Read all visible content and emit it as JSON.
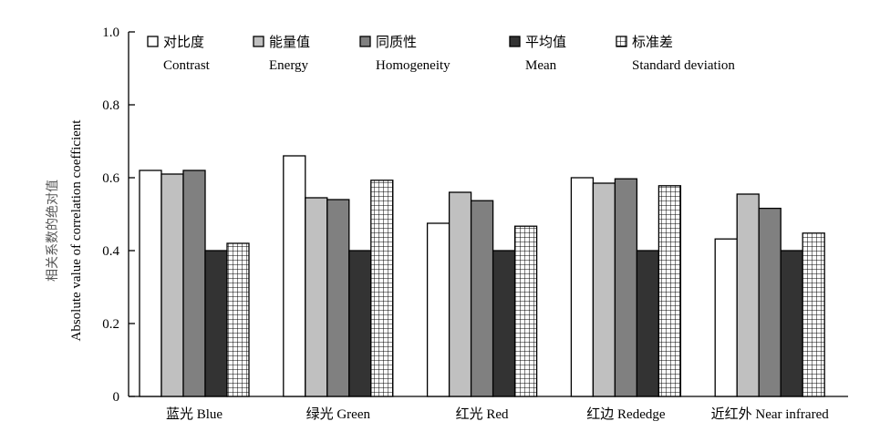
{
  "chart_data": {
    "type": "bar",
    "ylabel_cn": "相关系数的绝对值",
    "ylabel": "Absolute value of correlation coefficient",
    "ylim": [
      0,
      1.0
    ],
    "yticks": [
      0,
      0.2,
      0.4,
      0.6,
      0.8,
      1.0
    ],
    "ytick_labels": [
      "0",
      "0.2",
      "0.4",
      "0.6",
      "0.8",
      "1.0"
    ],
    "categories": [
      "蓝光 Blue",
      "绿光 Green",
      "红光 Red",
      "红边 Rededge",
      "近红外 Near infrared"
    ],
    "legend_position": "top",
    "series": [
      {
        "name_cn": "对比度",
        "name": "Contrast",
        "fill": "#ffffff",
        "pattern": "none",
        "values": [
          0.62,
          0.66,
          0.475,
          0.6,
          0.432
        ]
      },
      {
        "name_cn": "能量值",
        "name": "Energy",
        "fill": "#c0c0c0",
        "pattern": "none",
        "values": [
          0.61,
          0.545,
          0.56,
          0.585,
          0.555
        ]
      },
      {
        "name_cn": "同质性",
        "name": "Homogeneity",
        "fill": "#808080",
        "pattern": "none",
        "values": [
          0.62,
          0.54,
          0.537,
          0.597,
          0.516
        ]
      },
      {
        "name_cn": "平均值",
        "name": "Mean",
        "fill": "#333333",
        "pattern": "none",
        "values": [
          0.4,
          0.4,
          0.4,
          0.4,
          0.4
        ]
      },
      {
        "name_cn": "标准差",
        "name": "Standard deviation",
        "fill": "#ffffff",
        "pattern": "grid",
        "values": [
          0.42,
          0.593,
          0.467,
          0.578,
          0.448
        ]
      }
    ]
  }
}
